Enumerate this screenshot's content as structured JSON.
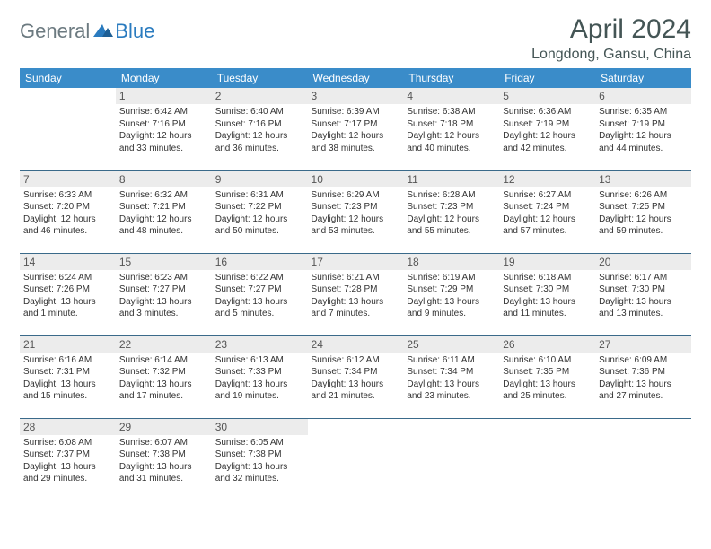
{
  "brand": {
    "general": "General",
    "blue": "Blue"
  },
  "title": "April 2024",
  "location": "Longdong, Gansu, China",
  "colors": {
    "header_bg": "#3a8cc9",
    "header_text": "#ffffff",
    "daynum_bg": "#ececec",
    "border": "#3a6a8a",
    "title_color": "#444"
  },
  "typography": {
    "title_fontsize": 30,
    "location_fontsize": 16,
    "dayhead_fontsize": 12,
    "body_fontsize": 10
  },
  "weekdays": [
    "Sunday",
    "Monday",
    "Tuesday",
    "Wednesday",
    "Thursday",
    "Friday",
    "Saturday"
  ],
  "start_offset": 1,
  "days": [
    {
      "n": "1",
      "sunrise": "6:42 AM",
      "sunset": "7:16 PM",
      "daylight": "12 hours and 33 minutes."
    },
    {
      "n": "2",
      "sunrise": "6:40 AM",
      "sunset": "7:16 PM",
      "daylight": "12 hours and 36 minutes."
    },
    {
      "n": "3",
      "sunrise": "6:39 AM",
      "sunset": "7:17 PM",
      "daylight": "12 hours and 38 minutes."
    },
    {
      "n": "4",
      "sunrise": "6:38 AM",
      "sunset": "7:18 PM",
      "daylight": "12 hours and 40 minutes."
    },
    {
      "n": "5",
      "sunrise": "6:36 AM",
      "sunset": "7:19 PM",
      "daylight": "12 hours and 42 minutes."
    },
    {
      "n": "6",
      "sunrise": "6:35 AM",
      "sunset": "7:19 PM",
      "daylight": "12 hours and 44 minutes."
    },
    {
      "n": "7",
      "sunrise": "6:33 AM",
      "sunset": "7:20 PM",
      "daylight": "12 hours and 46 minutes."
    },
    {
      "n": "8",
      "sunrise": "6:32 AM",
      "sunset": "7:21 PM",
      "daylight": "12 hours and 48 minutes."
    },
    {
      "n": "9",
      "sunrise": "6:31 AM",
      "sunset": "7:22 PM",
      "daylight": "12 hours and 50 minutes."
    },
    {
      "n": "10",
      "sunrise": "6:29 AM",
      "sunset": "7:23 PM",
      "daylight": "12 hours and 53 minutes."
    },
    {
      "n": "11",
      "sunrise": "6:28 AM",
      "sunset": "7:23 PM",
      "daylight": "12 hours and 55 minutes."
    },
    {
      "n": "12",
      "sunrise": "6:27 AM",
      "sunset": "7:24 PM",
      "daylight": "12 hours and 57 minutes."
    },
    {
      "n": "13",
      "sunrise": "6:26 AM",
      "sunset": "7:25 PM",
      "daylight": "12 hours and 59 minutes."
    },
    {
      "n": "14",
      "sunrise": "6:24 AM",
      "sunset": "7:26 PM",
      "daylight": "13 hours and 1 minute."
    },
    {
      "n": "15",
      "sunrise": "6:23 AM",
      "sunset": "7:27 PM",
      "daylight": "13 hours and 3 minutes."
    },
    {
      "n": "16",
      "sunrise": "6:22 AM",
      "sunset": "7:27 PM",
      "daylight": "13 hours and 5 minutes."
    },
    {
      "n": "17",
      "sunrise": "6:21 AM",
      "sunset": "7:28 PM",
      "daylight": "13 hours and 7 minutes."
    },
    {
      "n": "18",
      "sunrise": "6:19 AM",
      "sunset": "7:29 PM",
      "daylight": "13 hours and 9 minutes."
    },
    {
      "n": "19",
      "sunrise": "6:18 AM",
      "sunset": "7:30 PM",
      "daylight": "13 hours and 11 minutes."
    },
    {
      "n": "20",
      "sunrise": "6:17 AM",
      "sunset": "7:30 PM",
      "daylight": "13 hours and 13 minutes."
    },
    {
      "n": "21",
      "sunrise": "6:16 AM",
      "sunset": "7:31 PM",
      "daylight": "13 hours and 15 minutes."
    },
    {
      "n": "22",
      "sunrise": "6:14 AM",
      "sunset": "7:32 PM",
      "daylight": "13 hours and 17 minutes."
    },
    {
      "n": "23",
      "sunrise": "6:13 AM",
      "sunset": "7:33 PM",
      "daylight": "13 hours and 19 minutes."
    },
    {
      "n": "24",
      "sunrise": "6:12 AM",
      "sunset": "7:34 PM",
      "daylight": "13 hours and 21 minutes."
    },
    {
      "n": "25",
      "sunrise": "6:11 AM",
      "sunset": "7:34 PM",
      "daylight": "13 hours and 23 minutes."
    },
    {
      "n": "26",
      "sunrise": "6:10 AM",
      "sunset": "7:35 PM",
      "daylight": "13 hours and 25 minutes."
    },
    {
      "n": "27",
      "sunrise": "6:09 AM",
      "sunset": "7:36 PM",
      "daylight": "13 hours and 27 minutes."
    },
    {
      "n": "28",
      "sunrise": "6:08 AM",
      "sunset": "7:37 PM",
      "daylight": "13 hours and 29 minutes."
    },
    {
      "n": "29",
      "sunrise": "6:07 AM",
      "sunset": "7:38 PM",
      "daylight": "13 hours and 31 minutes."
    },
    {
      "n": "30",
      "sunrise": "6:05 AM",
      "sunset": "7:38 PM",
      "daylight": "13 hours and 32 minutes."
    }
  ],
  "labels": {
    "sunrise": "Sunrise:",
    "sunset": "Sunset:",
    "daylight": "Daylight:"
  }
}
